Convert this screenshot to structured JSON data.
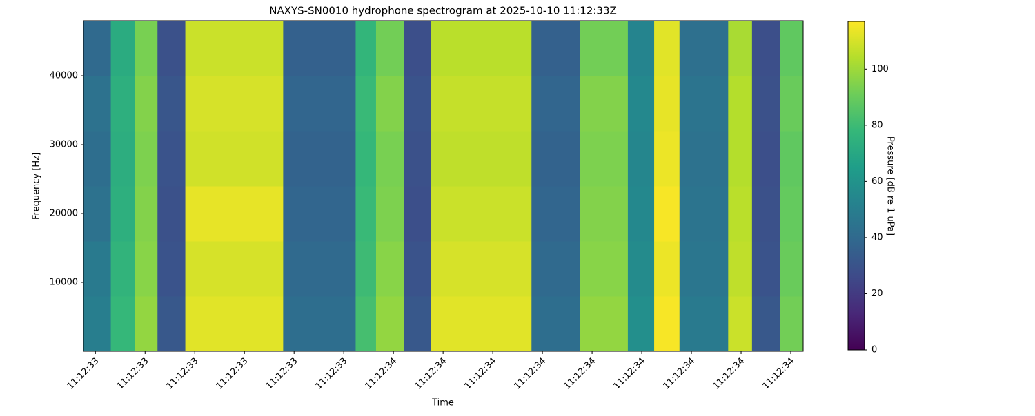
{
  "chart_data": {
    "type": "heatmap",
    "title": "NAXYS-SN0010 hydrophone spectrogram at 2025-10-10 11:12:33Z",
    "xlabel": "Time",
    "ylabel": "Frequency [Hz]",
    "colorbar_label": "Pressure [dB re 1 uPa]",
    "colormap": "viridis",
    "x_edges": [
      33.376,
      33.431,
      33.479,
      33.525,
      33.581,
      33.778,
      33.924,
      33.965,
      34.021,
      34.076,
      34.278,
      34.375,
      34.472,
      34.525,
      34.576,
      34.674,
      34.722,
      34.778,
      34.825
    ],
    "y_edges": [
      0,
      8000,
      16000,
      24000,
      32000,
      40000,
      48000
    ],
    "z": [
      [
        50,
        78,
        98,
        32,
        112,
        42,
        82,
        98,
        32,
        112,
        42,
        98,
        58,
        116,
        48,
        108,
        32,
        92
      ],
      [
        48,
        76,
        96,
        30,
        110,
        40,
        80,
        96,
        30,
        110,
        40,
        96,
        56,
        114,
        46,
        106,
        30,
        90
      ],
      [
        44,
        74,
        95,
        29,
        113,
        38,
        79,
        94,
        28,
        108,
        38,
        95,
        55,
        116,
        45,
        105,
        29,
        89
      ],
      [
        42,
        73,
        94,
        30,
        109,
        37,
        78,
        93,
        29,
        106,
        37,
        94,
        54,
        114,
        44,
        104,
        28,
        88
      ],
      [
        44,
        74,
        95,
        31,
        110,
        38,
        79,
        95,
        30,
        107,
        38,
        95,
        55,
        113,
        45,
        104,
        29,
        90
      ],
      [
        40,
        72,
        93,
        29,
        108,
        36,
        77,
        92,
        28,
        105,
        36,
        92,
        53,
        112,
        43,
        102,
        28,
        88
      ]
    ],
    "xlim": [
      33.376,
      34.825
    ],
    "xticks": [
      {
        "value": 33.4,
        "label": "11:12:33"
      },
      {
        "value": 33.5,
        "label": "11:12:33"
      },
      {
        "value": 33.6,
        "label": "11:12:33"
      },
      {
        "value": 33.7,
        "label": "11:12:33"
      },
      {
        "value": 33.8,
        "label": "11:12:33"
      },
      {
        "value": 33.9,
        "label": "11:12:33"
      },
      {
        "value": 34.0,
        "label": "11:12:34"
      },
      {
        "value": 34.1,
        "label": "11:12:34"
      },
      {
        "value": 34.2,
        "label": "11:12:34"
      },
      {
        "value": 34.3,
        "label": "11:12:34"
      },
      {
        "value": 34.4,
        "label": "11:12:34"
      },
      {
        "value": 34.5,
        "label": "11:12:34"
      },
      {
        "value": 34.6,
        "label": "11:12:34"
      },
      {
        "value": 34.7,
        "label": "11:12:34"
      },
      {
        "value": 34.8,
        "label": "11:12:34"
      }
    ],
    "ylim": [
      0,
      48000
    ],
    "yticks": [
      10000,
      20000,
      30000,
      40000
    ],
    "clim": [
      0,
      117
    ],
    "cticks": [
      0,
      20,
      40,
      60,
      80,
      100
    ]
  }
}
